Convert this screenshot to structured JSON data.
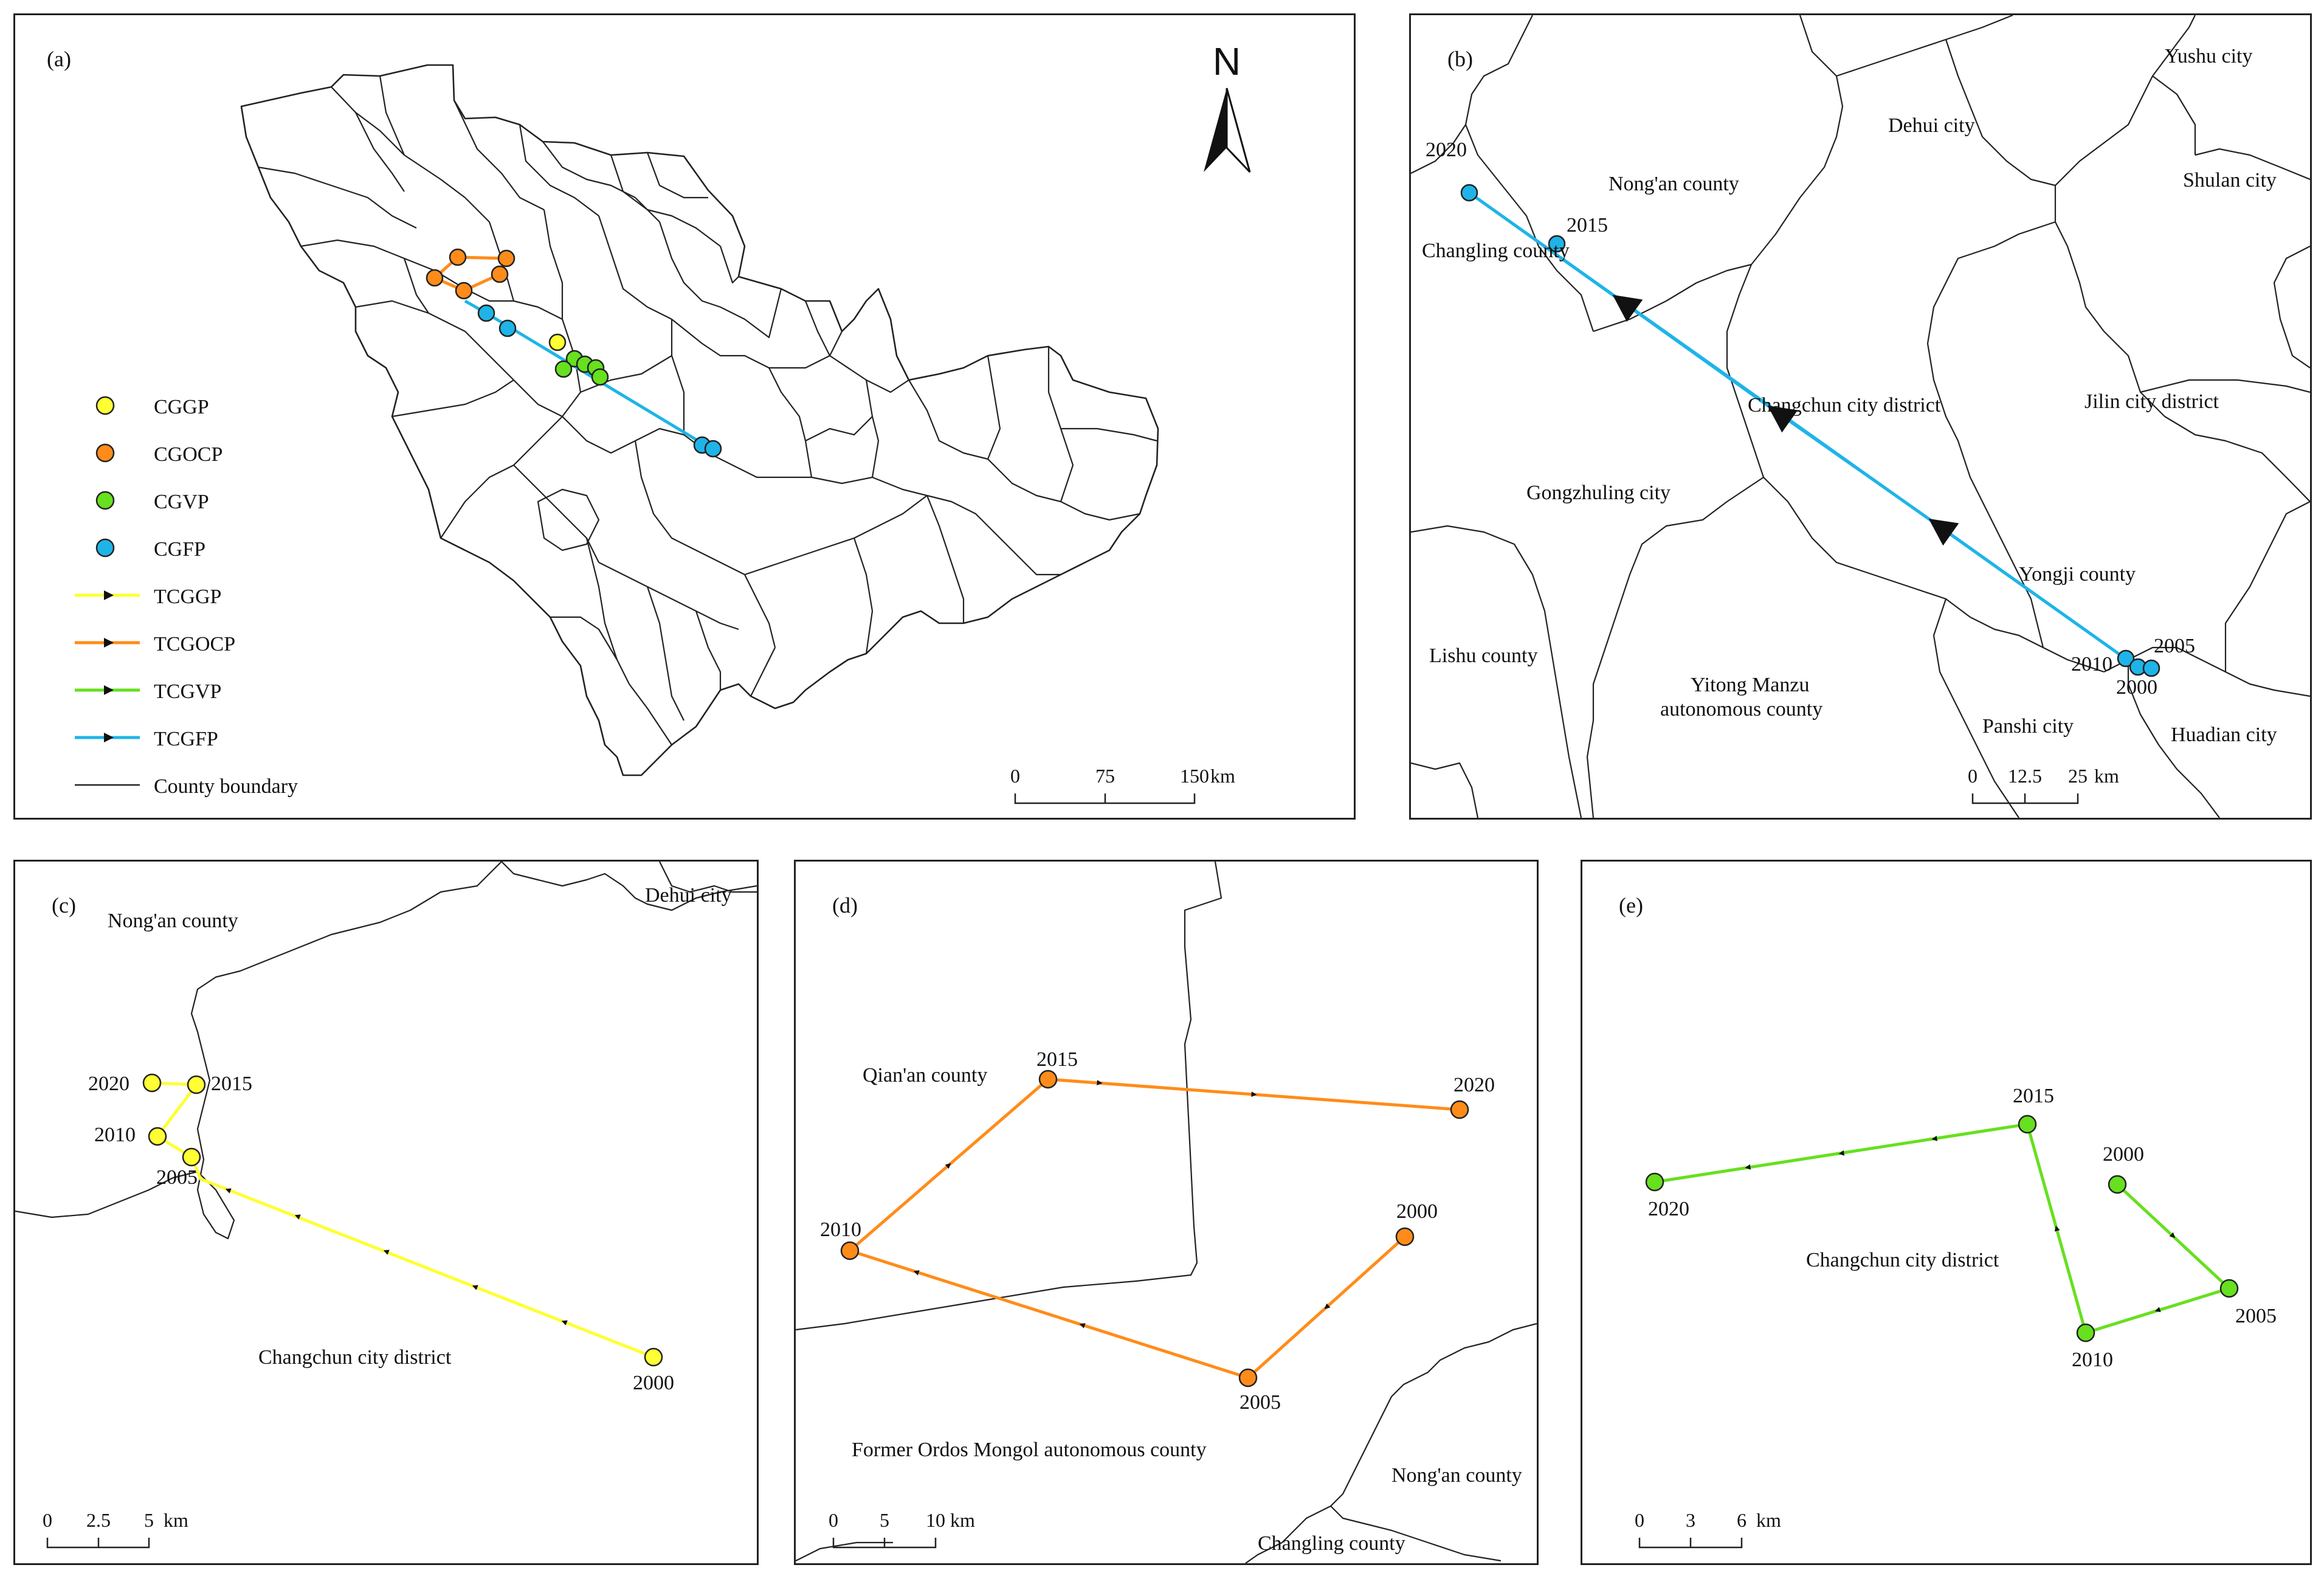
{
  "colors": {
    "cggp": "#ffff33",
    "cgocp": "#ff8c1a",
    "cgvp": "#66e01f",
    "cgfp": "#1fb4e8",
    "boundary": "#222222"
  },
  "panel_a": {
    "tag": "(a)",
    "north": "N",
    "legend": {
      "points": [
        {
          "label": "CGGP",
          "color": "#ffff33"
        },
        {
          "label": "CGOCP",
          "color": "#ff8c1a"
        },
        {
          "label": "CGVP",
          "color": "#66e01f"
        },
        {
          "label": "CGFP",
          "color": "#1fb4e8"
        }
      ],
      "lines": [
        {
          "label": "TCGGP",
          "color": "#ffff33"
        },
        {
          "label": "TCGOCP",
          "color": "#ff8c1a"
        },
        {
          "label": "TCGVP",
          "color": "#66e01f"
        },
        {
          "label": "TCGFP",
          "color": "#1fb4e8"
        }
      ],
      "boundary_label": "County boundary"
    },
    "scale": {
      "ticks": [
        "0",
        "75",
        "150"
      ],
      "unit": "km"
    }
  },
  "panel_b": {
    "tag": "(b)",
    "regions": [
      "Yushu city",
      "Dehui city",
      "Nong'an county",
      "Shulan city",
      "Changling county",
      "Changchun city district",
      "Jilin city district",
      "Gongzhuling city",
      "Yongji county",
      "Lishu county",
      "Yitong Manzu",
      "autonomous county",
      "Panshi city",
      "Huadian city"
    ],
    "years": [
      "2020",
      "2015",
      "2010",
      "2005",
      "2000"
    ],
    "scale": {
      "ticks": [
        "0",
        "12.5",
        "25"
      ],
      "unit": "km"
    }
  },
  "panel_c": {
    "tag": "(c)",
    "regions": [
      "Nong'an county",
      "Dehui city",
      "Changchun city district"
    ],
    "years": [
      "2020",
      "2015",
      "2010",
      "2005",
      "2000"
    ],
    "scale": {
      "ticks": [
        "0",
        "2.5",
        "5"
      ],
      "unit": "km"
    }
  },
  "panel_d": {
    "tag": "(d)",
    "regions": [
      "Qian'an county",
      "Former Ordos Mongol autonomous county",
      "Nong'an county",
      "Changling county"
    ],
    "years": [
      "2015",
      "2020",
      "2010",
      "2000",
      "2005"
    ],
    "scale": {
      "ticks": [
        "0",
        "5",
        "10"
      ],
      "unit": "km"
    }
  },
  "panel_e": {
    "tag": "(e)",
    "regions": [
      "Changchun city district"
    ],
    "years": [
      "2015",
      "2000",
      "2020",
      "2005",
      "2010"
    ],
    "scale": {
      "ticks": [
        "0",
        "3",
        "6"
      ],
      "unit": "km"
    }
  }
}
